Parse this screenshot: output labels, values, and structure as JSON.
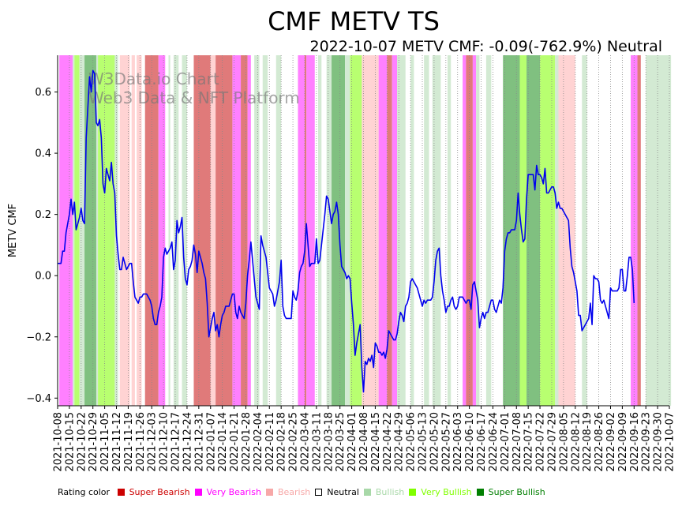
{
  "chart_data": {
    "type": "line",
    "title": "CMF METV TS",
    "subtitle": "2022-10-07 METV CMF: -0.09(-762.9%) Neutral",
    "ylabel": "METV CMF",
    "xlabel": "",
    "ylim": [
      -0.425,
      0.72
    ],
    "yticks": [
      -0.4,
      -0.2,
      0.0,
      0.2,
      0.4,
      0.6
    ],
    "ytick_labels": [
      "−0.4",
      "−0.2",
      "0.0",
      "0.2",
      "0.4",
      "0.6"
    ],
    "grid": "vertical dotted",
    "watermark": [
      "W3Data.io Chart",
      "Web3 Data & NFT Platform"
    ],
    "x_start": "2021-10-08",
    "x_end": "2022-10-07",
    "xtick_labels": [
      "2021-10-08",
      "2021-10-15",
      "2021-10-22",
      "2021-10-29",
      "2021-11-05",
      "2021-11-12",
      "2021-11-19",
      "2021-11-26",
      "2021-12-03",
      "2021-12-10",
      "2021-12-17",
      "2021-12-24",
      "2021-12-31",
      "2022-01-07",
      "2022-01-14",
      "2022-01-21",
      "2022-01-28",
      "2022-02-04",
      "2022-02-11",
      "2022-02-18",
      "2022-02-25",
      "2022-03-04",
      "2022-03-11",
      "2022-03-18",
      "2022-03-25",
      "2022-04-01",
      "2022-04-08",
      "2022-04-15",
      "2022-04-22",
      "2022-04-29",
      "2022-05-06",
      "2022-05-13",
      "2022-05-20",
      "2022-05-27",
      "2022-06-03",
      "2022-06-10",
      "2022-06-17",
      "2022-06-24",
      "2022-07-01",
      "2022-07-08",
      "2022-07-15",
      "2022-07-22",
      "2022-07-29",
      "2022-08-05",
      "2022-08-12",
      "2022-08-19",
      "2022-08-26",
      "2022-09-02",
      "2022-09-09",
      "2022-09-16",
      "2022-09-23",
      "2022-09-30",
      "2022-10-07"
    ],
    "series": [
      {
        "name": "METV CMF",
        "color": "#0000ee",
        "day_offsets": [
          0,
          2,
          3,
          4,
          5,
          6,
          7,
          8,
          9,
          10,
          11,
          12,
          13,
          14,
          15,
          16,
          17,
          18,
          19,
          20,
          21,
          22,
          23,
          24,
          25,
          26,
          27,
          28,
          29,
          30,
          31,
          32,
          33,
          34,
          35,
          36,
          37,
          38,
          39,
          40,
          41,
          42,
          43,
          44,
          45,
          46,
          47,
          48,
          49,
          50,
          51,
          52,
          53,
          54,
          55,
          56,
          57,
          58,
          59,
          60,
          61,
          62,
          63,
          64,
          65,
          66,
          67,
          68,
          69,
          70,
          71,
          72,
          73,
          74,
          75,
          76,
          77,
          78,
          79,
          80,
          81,
          82,
          83,
          84,
          85,
          86,
          87,
          88,
          89,
          90,
          91,
          92,
          93,
          94,
          95,
          96,
          97,
          98,
          99,
          100,
          101,
          102,
          103,
          104,
          105,
          106,
          107,
          108,
          109,
          110,
          111,
          112,
          113,
          114,
          115,
          116,
          117,
          118,
          119,
          120,
          121,
          122,
          123,
          124,
          125,
          126,
          127,
          128,
          129,
          130,
          131,
          132,
          133,
          134,
          135,
          136,
          137,
          138,
          139,
          140,
          141,
          142,
          143,
          144,
          145,
          146,
          147,
          148,
          149,
          150,
          151,
          152,
          153,
          154,
          155,
          156,
          157,
          158,
          159,
          160,
          161,
          162,
          163,
          164,
          165,
          166,
          167,
          168,
          169,
          170,
          171,
          172,
          173,
          174,
          175,
          176,
          177,
          178,
          179,
          180,
          181,
          182,
          183,
          184,
          185,
          186,
          187,
          188,
          189,
          190,
          191,
          192,
          193,
          194,
          195,
          196,
          197,
          198,
          199,
          200,
          201,
          202,
          203,
          204,
          205,
          206,
          207,
          208,
          209,
          210,
          211,
          212,
          213,
          214,
          215,
          216,
          217,
          218,
          219,
          220,
          221,
          222,
          223,
          224,
          225,
          226,
          227,
          228,
          229,
          230,
          231,
          232,
          233,
          234,
          235,
          236,
          237,
          238,
          239,
          240,
          241,
          242,
          243,
          244,
          245,
          246,
          247,
          248,
          249,
          250,
          251,
          252,
          253,
          254,
          255,
          256,
          257,
          258,
          259,
          260,
          261,
          262,
          263,
          264,
          265,
          266,
          267,
          268,
          269,
          270,
          271,
          272,
          273,
          274,
          275,
          276,
          277,
          278,
          279,
          280,
          281,
          282,
          283,
          284,
          285,
          286,
          287,
          288,
          289,
          290,
          291,
          292,
          293,
          294,
          295,
          296,
          297,
          298,
          299,
          300,
          301,
          302,
          303,
          304,
          305,
          306,
          307,
          308,
          309,
          310,
          311,
          312,
          313,
          314,
          315,
          316,
          317,
          318,
          319,
          320,
          321,
          322,
          323,
          324,
          325,
          326,
          327,
          328,
          329,
          330,
          331,
          332,
          333,
          334,
          335,
          336,
          337,
          338,
          339,
          340,
          341,
          342,
          343,
          344,
          345,
          346,
          347,
          348,
          349,
          350,
          351,
          352,
          353,
          354,
          355,
          356,
          357,
          358,
          359,
          360,
          361,
          362,
          363,
          364
        ],
        "values": [
          0.04,
          0.04,
          0.08,
          0.08,
          0.14,
          0.17,
          0.2,
          0.25,
          0.2,
          0.24,
          0.15,
          0.17,
          0.19,
          0.22,
          0.18,
          0.17,
          0.45,
          0.55,
          0.65,
          0.6,
          0.67,
          0.66,
          0.5,
          0.49,
          0.51,
          0.45,
          0.3,
          0.27,
          0.35,
          0.33,
          0.31,
          0.37,
          0.3,
          0.27,
          0.13,
          0.07,
          0.02,
          0.02,
          0.06,
          0.04,
          0.02,
          0.03,
          0.04,
          0.04,
          -0.02,
          -0.07,
          -0.08,
          -0.09,
          -0.07,
          -0.07,
          -0.06,
          -0.06,
          -0.06,
          -0.07,
          -0.08,
          -0.1,
          -0.14,
          -0.16,
          -0.16,
          -0.12,
          -0.1,
          -0.07,
          0.06,
          0.09,
          0.07,
          0.08,
          0.09,
          0.11,
          0.02,
          0.05,
          0.18,
          0.14,
          0.16,
          0.19,
          0.06,
          -0.01,
          -0.03,
          0.02,
          0.03,
          0.05,
          0.1,
          0.07,
          0.01,
          0.08,
          0.06,
          0.04,
          0.01,
          -0.01,
          -0.09,
          -0.2,
          -0.17,
          -0.14,
          -0.12,
          -0.18,
          -0.16,
          -0.2,
          -0.16,
          -0.13,
          -0.12,
          -0.1,
          -0.1,
          -0.1,
          -0.08,
          -0.06,
          -0.06,
          -0.12,
          -0.14,
          -0.1,
          -0.12,
          -0.13,
          -0.14,
          -0.09,
          0.0,
          0.05,
          0.11,
          0.05,
          -0.01,
          -0.07,
          -0.09,
          -0.11,
          0.13,
          0.1,
          0.08,
          0.06,
          0.01,
          -0.04,
          -0.05,
          -0.06,
          -0.1,
          -0.08,
          -0.05,
          -0.02,
          0.05,
          -0.1,
          -0.13,
          -0.14,
          -0.14,
          -0.14,
          -0.14,
          -0.05,
          -0.07,
          -0.08,
          -0.05,
          0.01,
          0.03,
          0.04,
          0.08,
          0.17,
          0.1,
          0.03,
          0.04,
          0.04,
          0.04,
          0.12,
          0.04,
          0.05,
          0.1,
          0.15,
          0.2,
          0.26,
          0.25,
          0.21,
          0.17,
          0.2,
          0.21,
          0.24,
          0.2,
          0.1,
          0.03,
          0.02,
          0.01,
          -0.01,
          0.0,
          -0.01,
          -0.09,
          -0.16,
          -0.26,
          -0.22,
          -0.19,
          -0.16,
          -0.3,
          -0.38,
          -0.28,
          -0.29,
          -0.27,
          -0.28,
          -0.26,
          -0.3,
          -0.22,
          -0.23,
          -0.25,
          -0.25,
          -0.26,
          -0.25,
          -0.27,
          -0.24,
          -0.18,
          -0.19,
          -0.2,
          -0.21,
          -0.21,
          -0.19,
          -0.15,
          -0.12,
          -0.13,
          -0.15,
          -0.1,
          -0.09,
          -0.07,
          -0.02,
          -0.01,
          -0.02,
          -0.03,
          -0.04,
          -0.06,
          -0.08,
          -0.1,
          -0.08,
          -0.09,
          -0.08,
          -0.08,
          -0.08,
          -0.07,
          -0.02,
          0.05,
          0.08,
          0.09,
          0.0,
          -0.05,
          -0.08,
          -0.12,
          -0.1,
          -0.1,
          -0.08,
          -0.07,
          -0.1,
          -0.11,
          -0.1,
          -0.07,
          -0.07,
          -0.07,
          -0.08,
          -0.09,
          -0.08,
          -0.08,
          -0.11,
          -0.03,
          -0.02,
          -0.05,
          -0.08,
          -0.17,
          -0.14,
          -0.12,
          -0.14,
          -0.12,
          -0.12,
          -0.1,
          -0.08,
          -0.08,
          -0.11,
          -0.12,
          -0.1,
          -0.08,
          -0.09,
          -0.04,
          0.08,
          0.12,
          0.14,
          0.14,
          0.15,
          0.15,
          0.15,
          0.18,
          0.27,
          0.2,
          0.15,
          0.11,
          0.12,
          0.25,
          0.33,
          0.33,
          0.33,
          0.33,
          0.28,
          0.36,
          0.33,
          0.33,
          0.32,
          0.3,
          0.35,
          0.27,
          0.27,
          0.28,
          0.29,
          0.29,
          0.27,
          0.22,
          0.24,
          0.22,
          0.22,
          0.21,
          0.2,
          0.19,
          0.18,
          0.09,
          0.03,
          0.01,
          -0.02,
          -0.05,
          -0.13,
          -0.13,
          -0.18,
          -0.17,
          -0.16,
          -0.15,
          -0.14,
          -0.09,
          -0.16,
          0.0,
          -0.01,
          -0.01,
          -0.02,
          -0.08,
          -0.09,
          -0.08,
          -0.1,
          -0.12,
          -0.14,
          -0.04,
          -0.05,
          -0.05,
          -0.05,
          -0.05,
          -0.04,
          0.02,
          0.02,
          -0.05,
          -0.05,
          0.0,
          0.06,
          0.06,
          0.02,
          -0.09
        ]
      }
    ],
    "rating_bands": [
      [
        0,
        "none"
      ],
      [
        1,
        "very_bearish"
      ],
      [
        9,
        "bullish"
      ],
      [
        10,
        "very_bullish"
      ],
      [
        13,
        "bullish"
      ],
      [
        16,
        "super_bullish"
      ],
      [
        23,
        "bullish"
      ],
      [
        24,
        "very_bullish"
      ],
      [
        31,
        "very_bullish"
      ],
      [
        34,
        "bullish"
      ],
      [
        36,
        "none"
      ],
      [
        37,
        "bearish"
      ],
      [
        43,
        "none"
      ],
      [
        44,
        "bearish"
      ],
      [
        46,
        "none"
      ],
      [
        47,
        "bearish"
      ],
      [
        50,
        "none"
      ],
      [
        52,
        "super_bearish"
      ],
      [
        60,
        "very_bearish"
      ],
      [
        64,
        "none"
      ],
      [
        66,
        "bullish"
      ],
      [
        67,
        "none"
      ],
      [
        69,
        "bullish"
      ],
      [
        72,
        "none"
      ],
      [
        74,
        "bullish"
      ],
      [
        77,
        "none"
      ],
      [
        81,
        "super_bearish"
      ],
      [
        91,
        "bearish"
      ],
      [
        94,
        "super_bearish"
      ],
      [
        104,
        "very_bearish"
      ],
      [
        109,
        "super_bearish"
      ],
      [
        113,
        "very_bearish"
      ],
      [
        115,
        "none"
      ],
      [
        117,
        "bullish"
      ],
      [
        120,
        "none"
      ],
      [
        122,
        "bullish"
      ],
      [
        125,
        "none"
      ],
      [
        130,
        "bullish"
      ],
      [
        133,
        "none"
      ],
      [
        139,
        "none"
      ],
      [
        143,
        "very_bearish"
      ],
      [
        147,
        "super_bearish"
      ],
      [
        148,
        "very_bearish"
      ],
      [
        153,
        "none"
      ],
      [
        155,
        "bullish"
      ],
      [
        157,
        "none"
      ],
      [
        160,
        "bullish"
      ],
      [
        163,
        "super_bullish"
      ],
      [
        171,
        "bullish"
      ],
      [
        174,
        "very_bullish"
      ],
      [
        181,
        "bearish"
      ],
      [
        186,
        "bearish"
      ],
      [
        191,
        "very_bearish"
      ],
      [
        196,
        "super_bearish"
      ],
      [
        199,
        "very_bearish"
      ],
      [
        202,
        "bullish"
      ],
      [
        207,
        "none"
      ],
      [
        210,
        "bullish"
      ],
      [
        212,
        "none"
      ],
      [
        218,
        "bullish"
      ],
      [
        221,
        "none"
      ],
      [
        223,
        "bullish"
      ],
      [
        228,
        "none"
      ],
      [
        232,
        "bullish"
      ],
      [
        234,
        "none"
      ],
      [
        241,
        "very_bearish"
      ],
      [
        243,
        "super_bearish"
      ],
      [
        247,
        "very_bearish"
      ],
      [
        249,
        "bullish"
      ],
      [
        251,
        "none"
      ],
      [
        255,
        "bullish"
      ],
      [
        258,
        "none"
      ],
      [
        265,
        "super_bullish"
      ],
      [
        275,
        "very_bullish"
      ],
      [
        279,
        "super_bullish"
      ],
      [
        287,
        "very_bullish"
      ],
      [
        296,
        "bullish"
      ],
      [
        298,
        "bearish"
      ],
      [
        308,
        "none"
      ],
      [
        312,
        "bullish"
      ],
      [
        315,
        "none"
      ],
      [
        325,
        "none"
      ],
      [
        330,
        "none"
      ],
      [
        341,
        "very_bearish"
      ],
      [
        345,
        "super_bearish"
      ],
      [
        347,
        "none"
      ],
      [
        350,
        "bullish"
      ],
      [
        365,
        "end"
      ]
    ],
    "legend": {
      "title": "Rating color",
      "entries": [
        {
          "key": "super_bearish",
          "label": "Super Bearish",
          "color": "#cc0000",
          "band": "#e07a7a"
        },
        {
          "key": "very_bearish",
          "label": "Very Bearish",
          "color": "#ff00ff",
          "band": "#ff80ff"
        },
        {
          "key": "bearish",
          "label": "Bearish",
          "color": "#f7a8a8",
          "band": "#ffd3d3"
        },
        {
          "key": "neutral",
          "label": "Neutral",
          "color": "#ffffff",
          "band": "#ffffff"
        },
        {
          "key": "bullish",
          "label": "Bullish",
          "color": "#a8d8a8",
          "band": "#d3ead3"
        },
        {
          "key": "very_bullish",
          "label": "Very Bullish",
          "color": "#80ff00",
          "band": "#b8ff70"
        },
        {
          "key": "super_bullish",
          "label": "Super Bullish",
          "color": "#007f00",
          "band": "#80c080"
        }
      ]
    }
  }
}
